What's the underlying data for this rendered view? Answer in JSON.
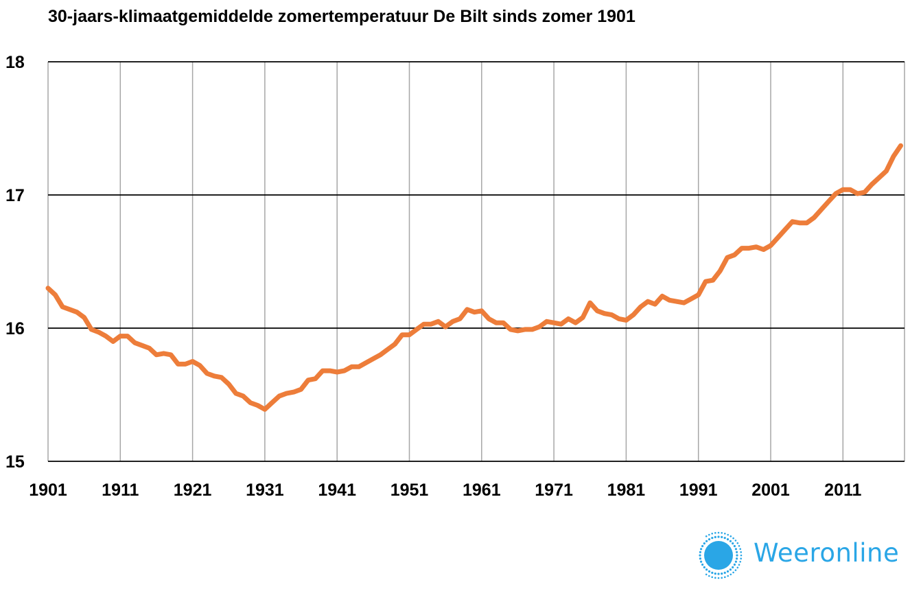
{
  "chart_data": {
    "type": "line",
    "title": "30-jaars-klimaatgemiddelde zomertemperatuur De Bilt sinds zomer 1901",
    "xlabel": "",
    "ylabel": "",
    "x_ticks": [
      "1901",
      "1911",
      "1921",
      "1931",
      "1941",
      "1951",
      "1961",
      "1971",
      "1981",
      "1991",
      "2001",
      "2011"
    ],
    "y_ticks": [
      "15",
      "16",
      "17",
      "18"
    ],
    "xlim": [
      1901,
      2019
    ],
    "ylim": [
      15,
      18
    ],
    "grid": true,
    "line_color": "#ed7d3a",
    "series": [
      {
        "name": "",
        "x": [
          1901,
          1902,
          1903,
          1904,
          1905,
          1906,
          1907,
          1908,
          1909,
          1910,
          1911,
          1912,
          1913,
          1914,
          1915,
          1916,
          1917,
          1918,
          1919,
          1920,
          1921,
          1922,
          1923,
          1924,
          1925,
          1926,
          1927,
          1928,
          1929,
          1930,
          1931,
          1932,
          1933,
          1934,
          1935,
          1936,
          1937,
          1938,
          1939,
          1940,
          1941,
          1942,
          1943,
          1944,
          1945,
          1946,
          1947,
          1948,
          1949,
          1950,
          1951,
          1952,
          1953,
          1954,
          1955,
          1956,
          1957,
          1958,
          1959,
          1960,
          1961,
          1962,
          1963,
          1964,
          1965,
          1966,
          1967,
          1968,
          1969,
          1970,
          1971,
          1972,
          1973,
          1974,
          1975,
          1976,
          1977,
          1978,
          1979,
          1980,
          1981,
          1982,
          1983,
          1984,
          1985,
          1986,
          1987,
          1988,
          1989,
          1990,
          1991,
          1992,
          1993,
          1994,
          1995,
          1996,
          1997,
          1998,
          1999,
          2000,
          2001,
          2002,
          2003,
          2004,
          2005,
          2006,
          2007,
          2008,
          2009,
          2010,
          2011,
          2012,
          2013,
          2014,
          2015,
          2016,
          2017,
          2018,
          2019
        ],
        "values": [
          16.3,
          16.25,
          16.16,
          16.14,
          16.12,
          16.08,
          15.99,
          15.97,
          15.94,
          15.9,
          15.94,
          15.94,
          15.89,
          15.87,
          15.85,
          15.8,
          15.81,
          15.8,
          15.73,
          15.73,
          15.75,
          15.72,
          15.66,
          15.64,
          15.63,
          15.58,
          15.51,
          15.49,
          15.44,
          15.42,
          15.39,
          15.44,
          15.49,
          15.51,
          15.52,
          15.54,
          15.61,
          15.62,
          15.68,
          15.68,
          15.67,
          15.68,
          15.71,
          15.71,
          15.74,
          15.77,
          15.8,
          15.84,
          15.88,
          15.95,
          15.95,
          15.99,
          16.03,
          16.03,
          16.05,
          16.01,
          16.05,
          16.07,
          16.14,
          16.12,
          16.13,
          16.07,
          16.04,
          16.04,
          15.99,
          15.98,
          15.99,
          15.99,
          16.01,
          16.05,
          16.04,
          16.03,
          16.07,
          16.04,
          16.08,
          16.19,
          16.13,
          16.11,
          16.1,
          16.07,
          16.06,
          16.1,
          16.16,
          16.2,
          16.18,
          16.24,
          16.21,
          16.2,
          16.19,
          16.22,
          16.25,
          16.35,
          16.36,
          16.43,
          16.53,
          16.55,
          16.6,
          16.6,
          16.61,
          16.59,
          16.62,
          16.68,
          16.74,
          16.8,
          16.79,
          16.79,
          16.83,
          16.89,
          16.95,
          17.01,
          17.04,
          17.04,
          17.01,
          17.02,
          17.08,
          17.13,
          17.18,
          17.29,
          17.37
        ]
      }
    ]
  },
  "brand": {
    "name": "Weeronline",
    "color": "#2aa6e6",
    "icon": "sun-logo-icon"
  }
}
